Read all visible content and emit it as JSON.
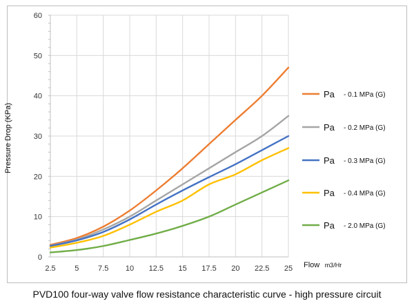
{
  "caption": "PVD100 four-way valve flow resistance characteristic curve - high pressure circuit",
  "chart_data": {
    "type": "line",
    "ylabel": "Pressure Drop (KPa)",
    "xlabel": "Flow",
    "xlabel_unit": "m3/Hr",
    "xlim": [
      2.5,
      25
    ],
    "ylim": [
      0,
      60
    ],
    "x_ticks": [
      "2.5",
      "5",
      "7.5",
      "10",
      "12.5",
      "15",
      "17.5",
      "20",
      "22.5",
      "25"
    ],
    "y_ticks": [
      "0",
      "10",
      "20",
      "30",
      "40",
      "50",
      "60"
    ],
    "grid": true,
    "legend_position": "right",
    "series": [
      {
        "name": "Pa",
        "label": "- 0.1 MPa (G)",
        "color": "#ED7D31",
        "x": [
          2.5,
          5,
          7.5,
          10,
          12.5,
          15,
          17.5,
          20,
          22.5,
          25
        ],
        "values": [
          3,
          4.7,
          7.5,
          11.5,
          16.5,
          22,
          28,
          34,
          40,
          47
        ]
      },
      {
        "name": "Pa",
        "label": "- 0.2 MPa (G)",
        "color": "#A5A5A5",
        "x": [
          2.5,
          5,
          7.5,
          10,
          12.5,
          15,
          17.5,
          20,
          22.5,
          25
        ],
        "values": [
          2.8,
          4.3,
          6.8,
          10,
          14,
          18,
          22,
          26,
          30,
          35
        ]
      },
      {
        "name": "Pa",
        "label": "- 0.3 MPa (G)",
        "color": "#4472C4",
        "x": [
          2.5,
          5,
          7.5,
          10,
          12.5,
          15,
          17.5,
          20,
          22.5,
          25
        ],
        "values": [
          2.7,
          4.1,
          6.2,
          9.3,
          13,
          16.5,
          19.8,
          23,
          26.5,
          30
        ]
      },
      {
        "name": "Pa",
        "label": "- 0.4 MPa (G)",
        "color": "#FFC000",
        "x": [
          2.5,
          5,
          7.5,
          10,
          12.5,
          15,
          17.5,
          20,
          22.5,
          25
        ],
        "values": [
          2.3,
          3.5,
          5.2,
          8,
          11.2,
          14,
          18,
          20.5,
          24,
          27
        ]
      },
      {
        "name": "Pa",
        "label": "- 2.0 MPa (G)",
        "color": "#70AD47",
        "x": [
          2.5,
          5,
          7.5,
          10,
          12.5,
          15,
          17.5,
          20,
          22.5,
          25
        ],
        "values": [
          1.1,
          1.7,
          2.7,
          4.2,
          5.8,
          7.7,
          10,
          13,
          16,
          19
        ]
      }
    ]
  }
}
